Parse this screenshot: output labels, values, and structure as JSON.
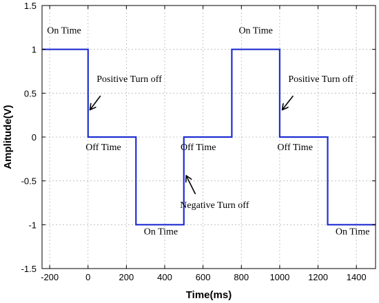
{
  "chart_data": {
    "type": "line",
    "title": "",
    "xlabel": "Time(ms)",
    "ylabel": "Amplitude(V)",
    "xlim": [
      -240,
      1500
    ],
    "ylim": [
      -1.5,
      1.5
    ],
    "grid": true,
    "line_color": "#1f2fd0",
    "x_ticks": [
      -200,
      0,
      200,
      400,
      600,
      800,
      1000,
      1200,
      1400
    ],
    "x_tick_labels": [
      "-200",
      "0",
      "200",
      "400",
      "600",
      "800",
      "1000",
      "1200",
      "1400"
    ],
    "y_ticks": [
      -1.5,
      -1,
      -0.5,
      0,
      0.5,
      1,
      1.5
    ],
    "y_tick_labels": [
      "-1.5",
      "-1",
      "-0.5",
      "0",
      "0.5",
      "1",
      "1.5"
    ],
    "series": [
      {
        "x": [
          -240,
          0,
          0,
          250,
          250,
          500,
          500,
          750,
          750,
          1000,
          1000,
          1250,
          1250,
          1500
        ],
        "y": [
          1,
          1,
          0,
          0,
          -1,
          -1,
          0,
          0,
          1,
          1,
          0,
          0,
          -1,
          -1
        ]
      }
    ],
    "annotations": [
      {
        "text": "On Time",
        "x": -125,
        "y": 1.18
      },
      {
        "text": "On Time",
        "x": 875,
        "y": 1.18
      },
      {
        "text": "Positive Turn off",
        "x": 215,
        "y": 0.63,
        "arrow_from": [
          65,
          0.47
        ],
        "arrow_to": [
          10,
          0.31
        ]
      },
      {
        "text": "Positive Turn off",
        "x": 1215,
        "y": 0.63,
        "arrow_from": [
          1070,
          0.47
        ],
        "arrow_to": [
          1013,
          0.31
        ]
      },
      {
        "text": "Off Time",
        "x": 80,
        "y": -0.15
      },
      {
        "text": "Off Time",
        "x": 575,
        "y": -0.15
      },
      {
        "text": "Off Time",
        "x": 1080,
        "y": -0.15
      },
      {
        "text": "Negative Turn off",
        "x": 660,
        "y": -0.81,
        "arrow_from": [
          560,
          -0.65
        ],
        "arrow_to": [
          512,
          -0.44
        ]
      },
      {
        "text": "On Time",
        "x": 380,
        "y": -1.11
      },
      {
        "text": "On Time",
        "x": 1380,
        "y": -1.11
      }
    ]
  }
}
